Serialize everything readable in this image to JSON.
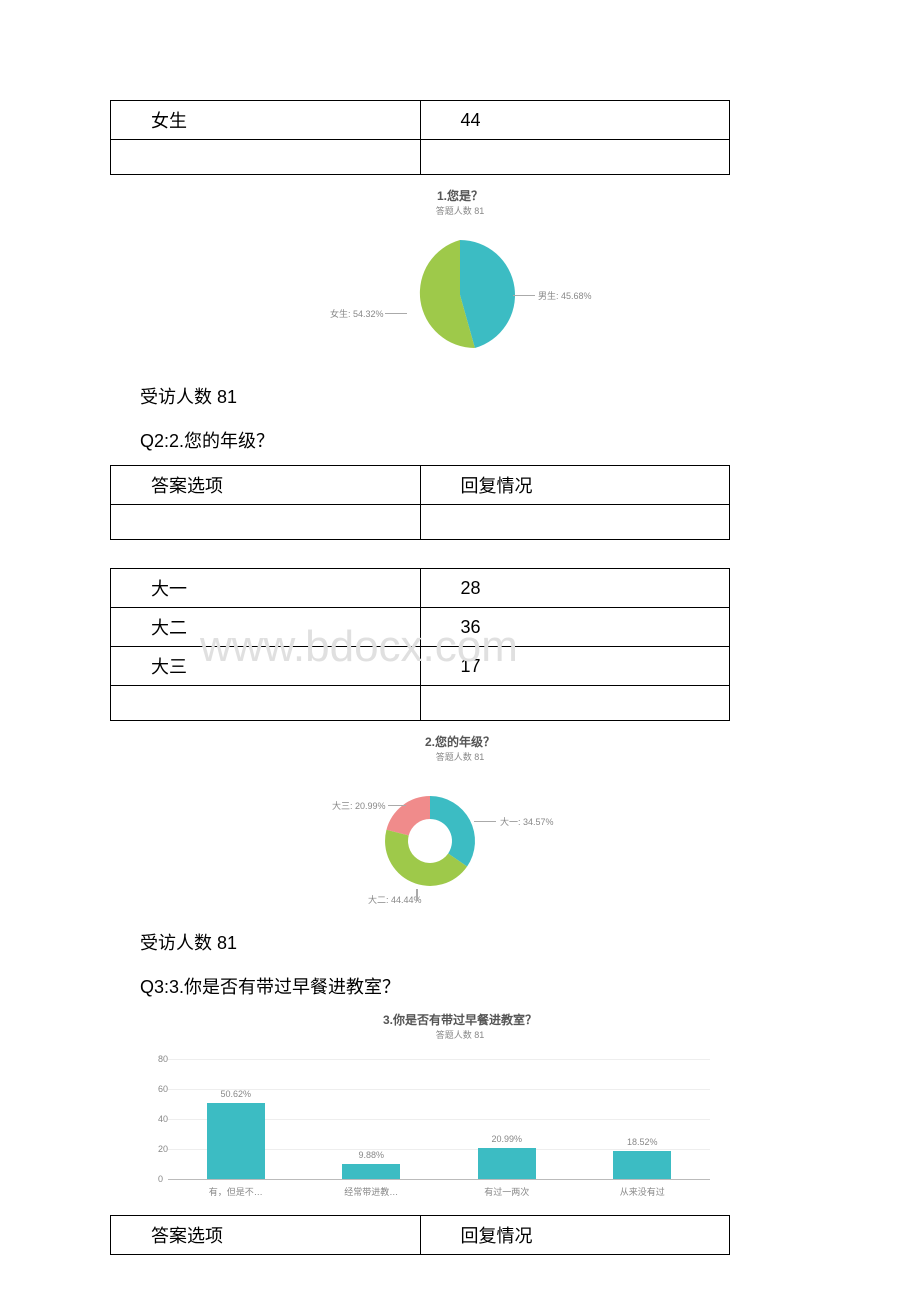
{
  "table1": {
    "rows": [
      [
        "女生",
        "44"
      ],
      [
        "",
        ""
      ]
    ]
  },
  "chart1": {
    "type": "pie",
    "title": "1.您是？",
    "subtitle": "答题人数 81",
    "slices": [
      {
        "label": "男生",
        "pct_text": "45.68%",
        "value": 45.68,
        "color": "#3cbcc3"
      },
      {
        "label": "女生",
        "pct_text": "54.32%",
        "value": 54.32,
        "color": "#9ec94a"
      }
    ],
    "background_color": "#ffffff",
    "label_fontsize": 9,
    "label_color": "#888888"
  },
  "respondents1": "受访人数 81",
  "q2_title": "Q2:2.您的年级？",
  "table2_header": {
    "col1": "答案选项",
    "col2": "回复情况"
  },
  "table2": {
    "rows": [
      [
        "大一",
        "28"
      ],
      [
        "大二",
        "36"
      ],
      [
        "大三",
        "17"
      ],
      [
        "",
        ""
      ]
    ]
  },
  "watermark_text": "www.bdocx.com",
  "chart2": {
    "type": "donut",
    "title": "2.您的年级？",
    "subtitle": "答题人数 81",
    "slices": [
      {
        "label": "大一",
        "pct_text": "34.57%",
        "value": 34.57,
        "color": "#3cbcc3"
      },
      {
        "label": "大二",
        "pct_text": "44.44%",
        "value": 44.44,
        "color": "#9ec94a"
      },
      {
        "label": "大三",
        "pct_text": "20.99%",
        "value": 20.99,
        "color": "#f08b8b"
      }
    ],
    "inner_radius_pct": 48,
    "background_color": "#ffffff",
    "label_fontsize": 9,
    "label_color": "#888888"
  },
  "respondents2": "受访人数 81",
  "q3_title": "Q3:3.你是否有带过早餐进教室？",
  "chart3": {
    "type": "bar",
    "title": "3.你是否有带过早餐进教室？",
    "subtitle": "答题人数 81",
    "categories": [
      "有，但是不…",
      "经常带进教…",
      "有过一两次",
      "从来没有过"
    ],
    "values": [
      50.62,
      9.88,
      20.99,
      18.52
    ],
    "value_labels": [
      "50.62%",
      "9.88%",
      "20.99%",
      "18.52%"
    ],
    "bar_color": "#3cbcc3",
    "ylim": [
      0,
      80
    ],
    "ytick_step": 20,
    "background_color": "#ffffff",
    "grid_color": "#eeeeee",
    "label_color": "#888888",
    "label_fontsize": 9
  },
  "table3_header": {
    "col1": "答案选项",
    "col2": "回复情况"
  }
}
